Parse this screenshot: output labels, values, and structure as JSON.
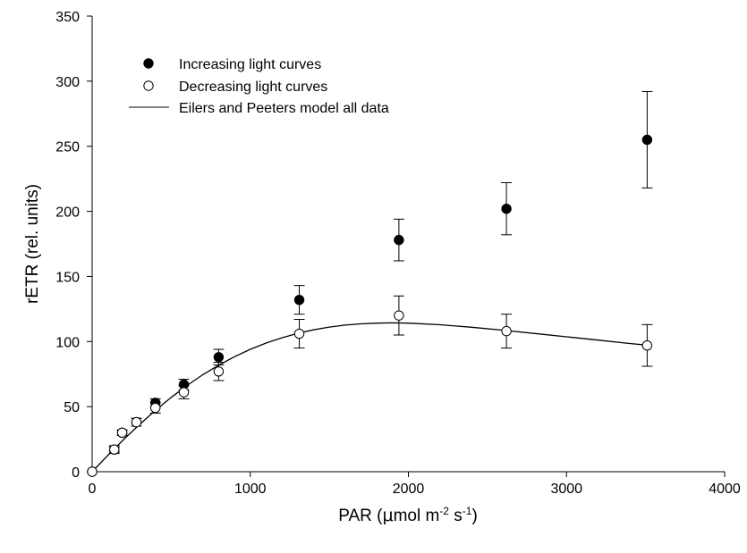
{
  "chart_data": {
    "type": "scatter",
    "title": "",
    "xlabel": {
      "prefix": "PAR (",
      "mu": "μ",
      "mol": "mol m",
      "sup1": "-2",
      "mid": " s",
      "sup2": "-1",
      "suffix": ")"
    },
    "ylabel": "rETR (rel. units)",
    "xlim": [
      0,
      4000
    ],
    "ylim": [
      0,
      350
    ],
    "x_ticks": [
      0,
      1000,
      2000,
      3000,
      4000
    ],
    "y_ticks": [
      0,
      50,
      100,
      150,
      200,
      250,
      300,
      350
    ],
    "grid": false,
    "legend_position": "top-left",
    "series": [
      {
        "name": "Increasing light curves",
        "marker": "filled-circle",
        "color": "#000000",
        "points": [
          {
            "x": 0,
            "y": 0,
            "err": 0
          },
          {
            "x": 140,
            "y": 17,
            "err": 2
          },
          {
            "x": 190,
            "y": 30,
            "err": 2
          },
          {
            "x": 280,
            "y": 38,
            "err": 3
          },
          {
            "x": 400,
            "y": 53,
            "err": 3
          },
          {
            "x": 580,
            "y": 67,
            "err": 4
          },
          {
            "x": 800,
            "y": 88,
            "err": 6
          },
          {
            "x": 1310,
            "y": 132,
            "err": 11
          },
          {
            "x": 1940,
            "y": 178,
            "err": 16
          },
          {
            "x": 2620,
            "y": 202,
            "err": 20
          },
          {
            "x": 3510,
            "y": 255,
            "err": 37
          }
        ]
      },
      {
        "name": "Decreasing light curves",
        "marker": "open-circle",
        "color": "#000000",
        "points": [
          {
            "x": 0,
            "y": 0,
            "err": 0
          },
          {
            "x": 140,
            "y": 17,
            "err": 3
          },
          {
            "x": 190,
            "y": 30,
            "err": 2
          },
          {
            "x": 280,
            "y": 38,
            "err": 3
          },
          {
            "x": 400,
            "y": 49,
            "err": 4
          },
          {
            "x": 580,
            "y": 61,
            "err": 5
          },
          {
            "x": 800,
            "y": 77,
            "err": 7
          },
          {
            "x": 1310,
            "y": 106,
            "err": 11
          },
          {
            "x": 1940,
            "y": 120,
            "err": 15
          },
          {
            "x": 2620,
            "y": 108,
            "err": 13
          },
          {
            "x": 3510,
            "y": 97,
            "err": 16
          }
        ]
      },
      {
        "name": "Eilers and Peeters model all data",
        "type": "line",
        "color": "#000000",
        "x": [
          0,
          100,
          200,
          300,
          400,
          500,
          600,
          700,
          800,
          900,
          1000,
          1100,
          1200,
          1300,
          1400,
          1500,
          1600,
          1700,
          1800,
          1900,
          2000,
          2200,
          2400,
          2600,
          2800,
          3000,
          3200,
          3400,
          3500
        ],
        "y": [
          0,
          12.6,
          24.8,
          36.3,
          47.1,
          57.1,
          66.2,
          74.5,
          81.8,
          88.3,
          94.0,
          98.8,
          102.9,
          106.3,
          109.0,
          111.1,
          112.6,
          113.6,
          114.1,
          114.3,
          114.1,
          112.9,
          111.0,
          108.7,
          106.2,
          103.6,
          101.1,
          98.5,
          97.3
        ]
      }
    ]
  }
}
